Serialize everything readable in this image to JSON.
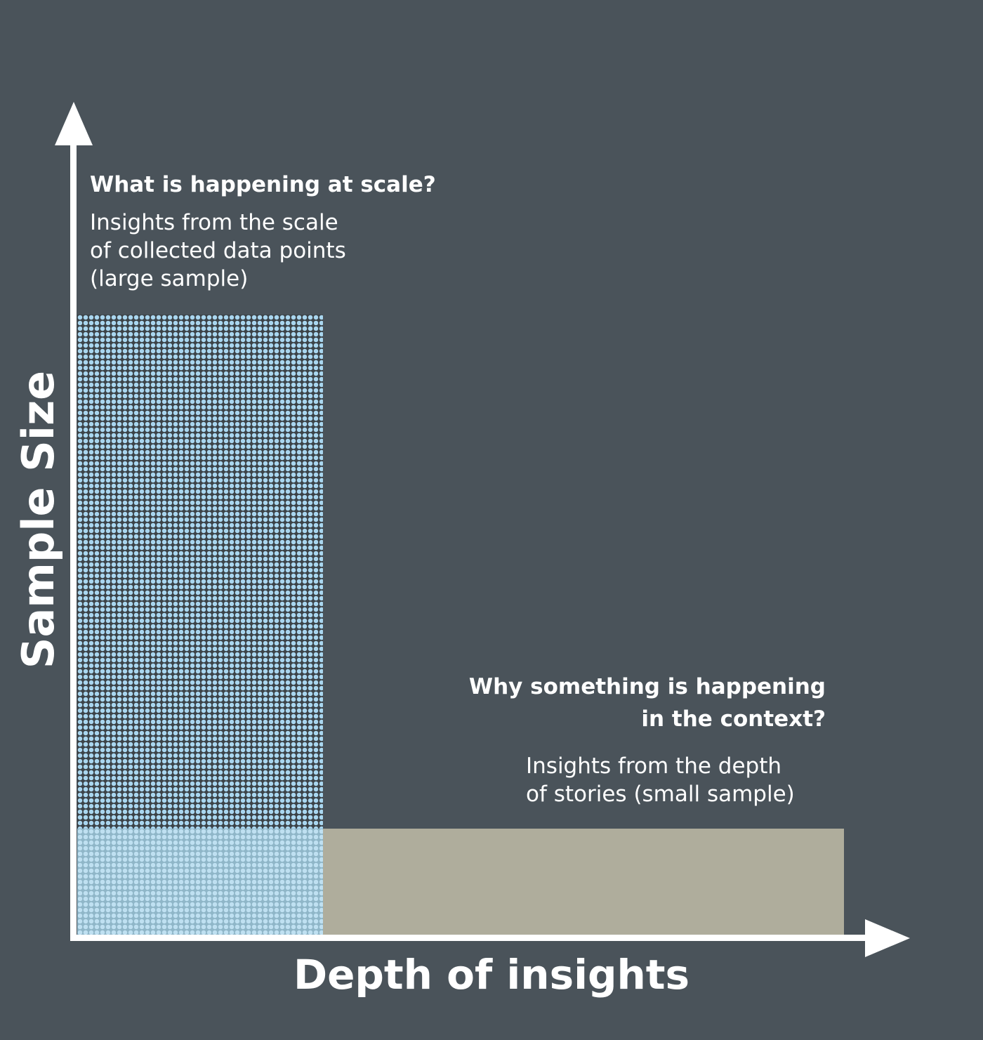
{
  "axes": {
    "y_label": "Sample Size",
    "x_label": "Depth of insights"
  },
  "quadrant_large_sample": {
    "heading": "What is happening at scale?",
    "body_lines": [
      "Insights from the scale",
      "of collected data points",
      "(large sample)"
    ],
    "fill_color": "#a9d6ef"
  },
  "quadrant_small_sample": {
    "heading_lines": [
      "Why something is happening",
      "in the context?"
    ],
    "body_lines": [
      "Insights from the depth",
      "of stories (small sample)"
    ],
    "fill_color": "#afad9c"
  },
  "colors": {
    "background": "#4a535a",
    "axis": "#ffffff",
    "text": "#ffffff"
  }
}
